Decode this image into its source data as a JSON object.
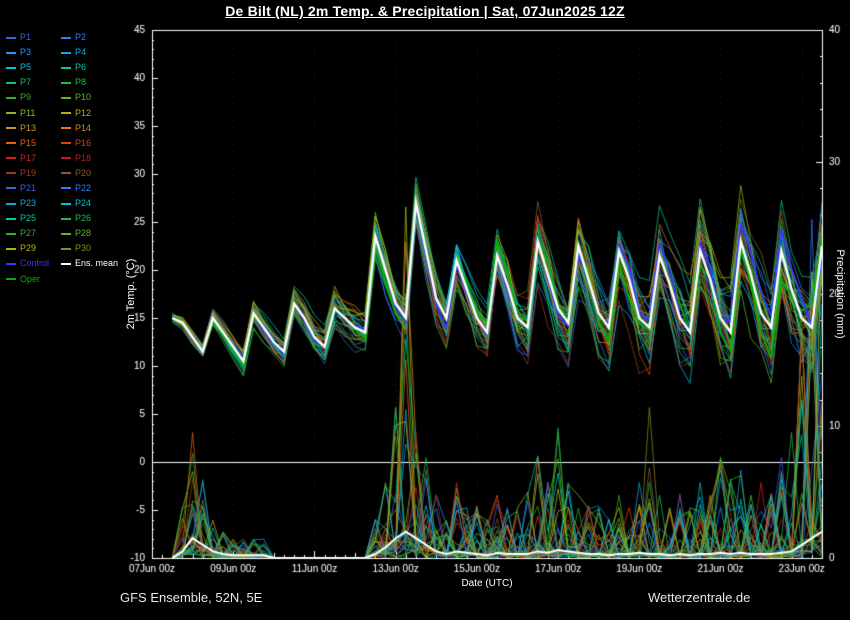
{
  "title": "De Bilt  (NL)  2m Temp. & Precipitation | Sat, 07Jun2025 12Z",
  "footer": {
    "left": "GFS Ensemble, 52N, 5E",
    "right": "Wetterzentrale.de"
  },
  "legend": {
    "members": [
      {
        "label": "P1",
        "color": "#3a62d9"
      },
      {
        "label": "P2",
        "color": "#2b7bff"
      },
      {
        "label": "P3",
        "color": "#2096ff"
      },
      {
        "label": "P4",
        "color": "#0aa9e8"
      },
      {
        "label": "P5",
        "color": "#00c3d9"
      },
      {
        "label": "P6",
        "color": "#00c9a7"
      },
      {
        "label": "P7",
        "color": "#0fbf7a"
      },
      {
        "label": "P8",
        "color": "#22b84e"
      },
      {
        "label": "P9",
        "color": "#2db22d"
      },
      {
        "label": "P10",
        "color": "#58b81e"
      },
      {
        "label": "P11",
        "color": "#8aba10"
      },
      {
        "label": "P12",
        "color": "#b3b30a"
      },
      {
        "label": "P13",
        "color": "#c9992a"
      },
      {
        "label": "P14",
        "color": "#d97f1e"
      },
      {
        "label": "P15",
        "color": "#e55f14"
      },
      {
        "label": "P16",
        "color": "#e03c14"
      },
      {
        "label": "P17",
        "color": "#d42222"
      },
      {
        "label": "P18",
        "color": "#b62020"
      },
      {
        "label": "P19",
        "color": "#9a3b20"
      },
      {
        "label": "P20",
        "color": "#8a5a28"
      },
      {
        "label": "P21",
        "color": "#3a62d9"
      },
      {
        "label": "P22",
        "color": "#2b7bff"
      },
      {
        "label": "P23",
        "color": "#0aa9e8"
      },
      {
        "label": "P24",
        "color": "#00c3d9"
      },
      {
        "label": "P25",
        "color": "#00c9a7"
      },
      {
        "label": "P26",
        "color": "#22b84e"
      },
      {
        "label": "P27",
        "color": "#2db22d"
      },
      {
        "label": "P28",
        "color": "#58b81e"
      },
      {
        "label": "P29",
        "color": "#b3b30a"
      },
      {
        "label": "P30",
        "color": "#8a8a20"
      }
    ],
    "control": {
      "label": "Control",
      "color": "#3535ff"
    },
    "ens_mean": {
      "label": "Ens. mean",
      "color": "#ffffff"
    },
    "oper": {
      "label": "Oper",
      "color": "#00b400"
    }
  },
  "axes": {
    "x": {
      "label": "Date (UTC)",
      "range_hours": [
        0,
        396
      ],
      "tick_hours": [
        0,
        48,
        96,
        144,
        192,
        240,
        288,
        336,
        384
      ],
      "tick_labels": [
        "07Jun 00z",
        "09Jun 00z",
        "11Jun 00z",
        "13Jun 00z",
        "15Jun 00z",
        "17Jun 00z",
        "19Jun 00z",
        "21Jun 00z",
        "23Jun 00z"
      ]
    },
    "y_left": {
      "label": "2m Temp. (°C)",
      "min": -10,
      "max": 45,
      "tick_step": 5
    },
    "y_right": {
      "label": "Precipitation (mm)",
      "min": 0,
      "max": 40,
      "tick_step": 10
    }
  },
  "chart_data": {
    "type": "line",
    "x_unit": "hours since 07Jun2025 00z (data begins at run time 12z, 6-hourly)",
    "x_hours": [
      12,
      18,
      24,
      30,
      36,
      42,
      48,
      54,
      60,
      66,
      72,
      78,
      84,
      90,
      96,
      102,
      108,
      114,
      120,
      126,
      132,
      138,
      144,
      150,
      156,
      162,
      168,
      174,
      180,
      186,
      192,
      198,
      204,
      210,
      216,
      222,
      228,
      234,
      240,
      246,
      252,
      258,
      264,
      270,
      276,
      282,
      288,
      294,
      300,
      306,
      312,
      318,
      324,
      330,
      336,
      342,
      348,
      354,
      360,
      366,
      372,
      378,
      384,
      390,
      396
    ],
    "temp_mean": [
      15,
      14.5,
      13,
      11.5,
      15,
      13.5,
      12,
      10.5,
      15.5,
      14,
      12.5,
      11.5,
      16.5,
      15,
      13,
      12,
      16,
      15,
      14,
      13.5,
      23.5,
      20,
      16.5,
      15,
      27,
      22,
      17,
      15,
      21,
      18,
      15,
      13.5,
      21.5,
      18.5,
      15,
      14,
      23,
      19.5,
      16,
      14.5,
      22.5,
      19,
      15.5,
      14,
      22,
      19,
      15,
      14,
      21.5,
      18.5,
      15,
      13.5,
      22,
      19,
      15,
      13.5,
      23,
      19.5,
      15.5,
      14,
      22,
      18,
      15,
      14,
      22.5
    ],
    "temp_spread": [
      0.5,
      0.6,
      0.7,
      0.7,
      0.8,
      0.9,
      1.0,
      1.1,
      1.1,
      1.2,
      1.3,
      1.4,
      1.5,
      1.5,
      1.6,
      1.7,
      1.8,
      1.9,
      1.9,
      2.0,
      2.1,
      2.2,
      2.3,
      2.3,
      2.4,
      2.5,
      2.6,
      2.7,
      2.7,
      2.8,
      2.9,
      3.0,
      3.1,
      3.1,
      3.2,
      3.3,
      3.4,
      3.5,
      3.5,
      3.6,
      3.7,
      3.8,
      3.9,
      3.9,
      4.0,
      4.1,
      4.2,
      4.3,
      4.3,
      4.4,
      4.5,
      4.6,
      4.7,
      4.7,
      4.8,
      4.9,
      5.0,
      5.1,
      5.1,
      5.2,
      5.3,
      5.4,
      5.5,
      5.5,
      5.6
    ],
    "precip_mean": [
      0,
      0.5,
      1.5,
      1,
      0.5,
      0.3,
      0.2,
      0.2,
      0.2,
      0.2,
      0,
      0,
      0,
      0,
      0,
      0,
      0,
      0,
      0,
      0,
      0.3,
      0.8,
      1.5,
      2,
      1.5,
      1,
      0.5,
      0.3,
      0.5,
      0.4,
      0.3,
      0.2,
      0.4,
      0.3,
      0.3,
      0.3,
      0.5,
      0.4,
      0.6,
      0.5,
      0.4,
      0.3,
      0.3,
      0.2,
      0.3,
      0.3,
      0.4,
      0.3,
      0.3,
      0.2,
      0.3,
      0.2,
      0.3,
      0.3,
      0.4,
      0.3,
      0.4,
      0.3,
      0.3,
      0.3,
      0.4,
      0.5,
      1,
      1.5,
      2
    ],
    "precip_max": [
      0,
      4,
      10,
      6,
      3,
      2,
      1.5,
      1.5,
      1.5,
      1.5,
      0,
      0,
      0,
      0,
      0,
      0,
      0,
      0,
      0,
      0,
      3,
      6,
      12,
      28,
      10,
      8,
      5,
      3,
      6,
      4,
      4,
      3,
      5,
      4,
      4,
      5,
      8,
      6,
      10,
      6,
      5,
      4,
      4,
      3,
      5,
      4,
      6,
      12,
      5,
      4,
      5,
      4,
      6,
      5,
      8,
      6,
      7,
      5,
      6,
      5,
      8,
      10,
      18,
      27,
      26
    ],
    "series_note": "31 ensemble members (P1-P30 + Control) lie within temp_mean ± ~1.5 × temp_spread; member precipitation ranges between 0 and precip_max; Ens. mean drawn in white, Oper in green",
    "zero_line_temp": 0,
    "ylim_temp": [
      -10,
      45
    ],
    "ylim_precip": [
      0,
      40
    ]
  }
}
